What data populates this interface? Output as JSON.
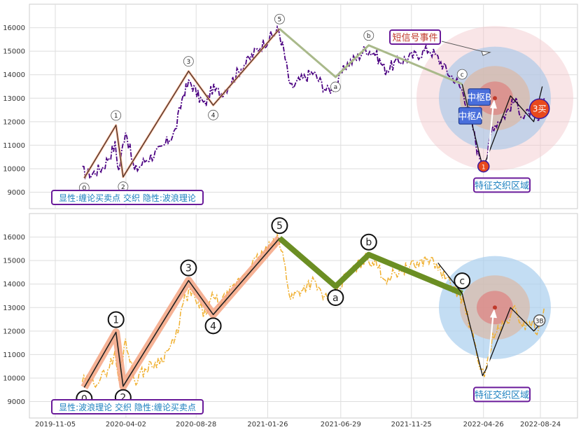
{
  "chart_data": [
    {
      "type": "line",
      "panel": "top",
      "title": "",
      "xlabel": "",
      "ylabel": "",
      "ylim": [
        8300,
        17000
      ],
      "y_ticks": [
        9000,
        10000,
        11000,
        12000,
        13000,
        14000,
        15000,
        16000
      ],
      "grid": true,
      "series": [
        {
          "style": "dash-dot",
          "color": "#4b0082",
          "x": [
            "2020-01-01",
            "2020-01-20",
            "2020-02-15",
            "2020-03-10",
            "2020-03-18",
            "2020-04-01",
            "2020-04-20",
            "2020-05-15",
            "2020-06-15",
            "2020-07-15",
            "2020-08-01",
            "2020-08-15",
            "2020-09-01",
            "2020-09-15",
            "2020-10-01",
            "2020-10-20",
            "2020-11-10",
            "2020-12-01",
            "2020-12-20",
            "2021-01-10",
            "2021-02-01",
            "2021-02-18",
            "2021-03-01",
            "2021-03-15",
            "2021-04-01",
            "2021-05-01",
            "2021-06-01",
            "2021-06-20",
            "2021-07-10",
            "2021-08-01",
            "2021-08-20",
            "2021-09-10",
            "2021-10-01",
            "2021-11-01",
            "2021-12-01",
            "2022-01-01",
            "2022-01-20",
            "2022-02-10",
            "2022-03-01",
            "2022-03-15",
            "2022-04-01",
            "2022-04-15",
            "2022-05-01",
            "2022-05-15",
            "2022-06-10",
            "2022-07-01",
            "2022-07-20",
            "2022-08-01",
            "2022-08-20",
            "2022-09-01"
          ],
          "values": [
            9900,
            9750,
            10100,
            11000,
            9900,
            11700,
            9900,
            10400,
            10800,
            11600,
            13200,
            13700,
            13100,
            12700,
            13400,
            13200,
            13700,
            14300,
            14700,
            15200,
            15600,
            15900,
            15000,
            13400,
            13700,
            14100,
            13300,
            13600,
            14400,
            14700,
            15100,
            14900,
            14200,
            14600,
            14800,
            15100,
            14700,
            14100,
            13700,
            13200,
            12000,
            10600,
            10200,
            11800,
            12300,
            12900,
            12200,
            12400,
            12000,
            13000
          ]
        }
      ],
      "wave_points": [
        {
          "label": "0",
          "x": "2020-01-05",
          "y": 9600
        },
        {
          "label": "1",
          "x": "2020-03-12",
          "y": 11850
        },
        {
          "label": "2",
          "x": "2020-03-27",
          "y": 9650
        },
        {
          "label": "3",
          "x": "2020-08-12",
          "y": 14150
        },
        {
          "label": "4",
          "x": "2020-10-03",
          "y": 12700
        },
        {
          "label": "5",
          "x": "2021-02-20",
          "y": 15950
        },
        {
          "label": "a",
          "x": "2021-06-18",
          "y": 13900
        },
        {
          "label": "b",
          "x": "2021-08-27",
          "y": 15250
        },
        {
          "label": "c",
          "x": "2022-03-12",
          "y": 13600
        }
      ],
      "wave_path_x": [
        "2020-01-05",
        "2020-03-12",
        "2020-03-27",
        "2020-08-12",
        "2020-10-03",
        "2021-02-20"
      ],
      "wave_path_y": [
        9600,
        11850,
        9650,
        14150,
        12700,
        15950
      ],
      "correction_path_x": [
        "2021-02-20",
        "2021-06-18",
        "2021-08-27",
        "2022-03-12"
      ],
      "correction_path_y": [
        15950,
        13900,
        15250,
        13600
      ],
      "tail_path_x": [
        "2022-03-12",
        "2022-04-24",
        "2022-05-02",
        "2022-06-22",
        "2022-08-10",
        "2022-08-28"
      ],
      "tail_path_y": [
        13600,
        10100,
        10400,
        13100,
        12000,
        13500
      ],
      "zhongshu": [
        {
          "label": "中枢A",
          "x0": "2022-03-05",
          "x1": "2022-04-22",
          "y0": 11900,
          "y1": 12600
        },
        {
          "label": "中枢B",
          "x0": "2022-03-25",
          "x1": "2022-05-10",
          "y0": 12700,
          "y1": 13400
        }
      ],
      "buy_marks": [
        {
          "label": "1",
          "x": "2022-04-26",
          "y": 10100
        },
        {
          "label": "3买",
          "x": "2022-08-22",
          "y": 12550
        }
      ],
      "annotations": {
        "legend_text": "显性:缠论买卖点 交织 隐性:波浪理论",
        "short_signal": "短信号事件",
        "zone_label": "特征交织区域",
        "zone_center": {
          "x": "2022-05-20",
          "y": 13000
        }
      }
    },
    {
      "type": "line",
      "panel": "bottom",
      "title": "",
      "xlabel": "",
      "ylabel": "",
      "ylim": [
        8300,
        17000
      ],
      "y_ticks": [
        9000,
        10000,
        11000,
        12000,
        13000,
        14000,
        15000,
        16000
      ],
      "x_ticks": [
        "2019-11-05",
        "2020-04-02",
        "2020-08-28",
        "2021-01-26",
        "2021-06-29",
        "2021-11-25",
        "2022-04-26",
        "2022-08-24"
      ],
      "grid": true,
      "series": [
        {
          "style": "dash-dot",
          "color": "#f0b030",
          "x": [
            "2020-01-01",
            "2020-01-20",
            "2020-02-15",
            "2020-03-10",
            "2020-03-18",
            "2020-04-01",
            "2020-04-20",
            "2020-05-15",
            "2020-06-15",
            "2020-07-15",
            "2020-08-01",
            "2020-08-15",
            "2020-09-01",
            "2020-09-15",
            "2020-10-01",
            "2020-10-20",
            "2020-11-10",
            "2020-12-01",
            "2020-12-20",
            "2021-01-10",
            "2021-02-01",
            "2021-02-18",
            "2021-03-01",
            "2021-03-15",
            "2021-04-01",
            "2021-05-01",
            "2021-06-01",
            "2021-06-20",
            "2021-07-10",
            "2021-08-01",
            "2021-08-20",
            "2021-09-10",
            "2021-10-01",
            "2021-11-01",
            "2021-12-01",
            "2022-01-01",
            "2022-01-20",
            "2022-02-10",
            "2022-03-01",
            "2022-03-15",
            "2022-04-01",
            "2022-04-15",
            "2022-05-01",
            "2022-05-15",
            "2022-06-10",
            "2022-07-01",
            "2022-07-20",
            "2022-08-01",
            "2022-08-20",
            "2022-09-01"
          ],
          "values": [
            9900,
            9750,
            10100,
            11000,
            9900,
            11700,
            9900,
            10400,
            10800,
            11600,
            13200,
            13700,
            13100,
            12700,
            13400,
            13200,
            13700,
            14300,
            14700,
            15200,
            15600,
            15900,
            15000,
            13400,
            13700,
            14100,
            13300,
            13600,
            14400,
            14700,
            15100,
            14900,
            14200,
            14600,
            14800,
            15100,
            14700,
            14100,
            13700,
            13200,
            12000,
            10600,
            10200,
            11800,
            12300,
            12900,
            12200,
            12400,
            12000,
            13000
          ]
        }
      ],
      "wave_points": [
        {
          "label": "0",
          "x": "2020-01-05",
          "y": 9600
        },
        {
          "label": "1",
          "x": "2020-03-12",
          "y": 11950
        },
        {
          "label": "2",
          "x": "2020-03-27",
          "y": 9650
        },
        {
          "label": "3",
          "x": "2020-08-12",
          "y": 14150
        },
        {
          "label": "4",
          "x": "2020-10-03",
          "y": 12700
        },
        {
          "label": "5",
          "x": "2021-02-20",
          "y": 15950
        },
        {
          "label": "a",
          "x": "2021-06-18",
          "y": 13900
        },
        {
          "label": "b",
          "x": "2021-08-27",
          "y": 15250
        },
        {
          "label": "c",
          "x": "2022-03-12",
          "y": 13600
        }
      ],
      "wave_path_x": [
        "2020-01-05",
        "2020-03-12",
        "2020-03-27",
        "2020-08-12",
        "2020-10-03",
        "2021-02-20"
      ],
      "wave_path_y": [
        9600,
        11950,
        9650,
        14150,
        12700,
        15950
      ],
      "correction_path_x": [
        "2021-02-20",
        "2021-06-18",
        "2021-08-27",
        "2022-03-12"
      ],
      "correction_path_y": [
        15950,
        13900,
        15250,
        13600
      ],
      "tail_path_x": [
        "2022-01-20",
        "2022-03-12",
        "2022-04-24",
        "2022-05-02",
        "2022-06-22",
        "2022-08-10",
        "2022-08-28"
      ],
      "tail_path_y": [
        14900,
        13600,
        10100,
        10400,
        13000,
        12000,
        12400
      ],
      "buy_marks": [
        {
          "label": "3B",
          "x": "2022-08-22",
          "y": 12450
        }
      ],
      "annotations": {
        "legend_text": "显性:波浪理论 交织 隐性:缠论买卖点",
        "zone_label": "特征交织区域",
        "zone_center": {
          "x": "2022-05-20",
          "y": 13000
        }
      }
    }
  ],
  "colors": {
    "price_top": "#4b0082",
    "price_bottom": "#f0b030",
    "impulse_highlight": "#f4a582",
    "correction_top": "#a9b98a",
    "correction_bottom": "#6b8e23",
    "label_border": "#6a1b9a",
    "label_text": "#1a7fbf",
    "signal_text": "#c0392b",
    "zhongshu_fill": "#4a6fdc",
    "buy_fill": "#e8491d"
  }
}
